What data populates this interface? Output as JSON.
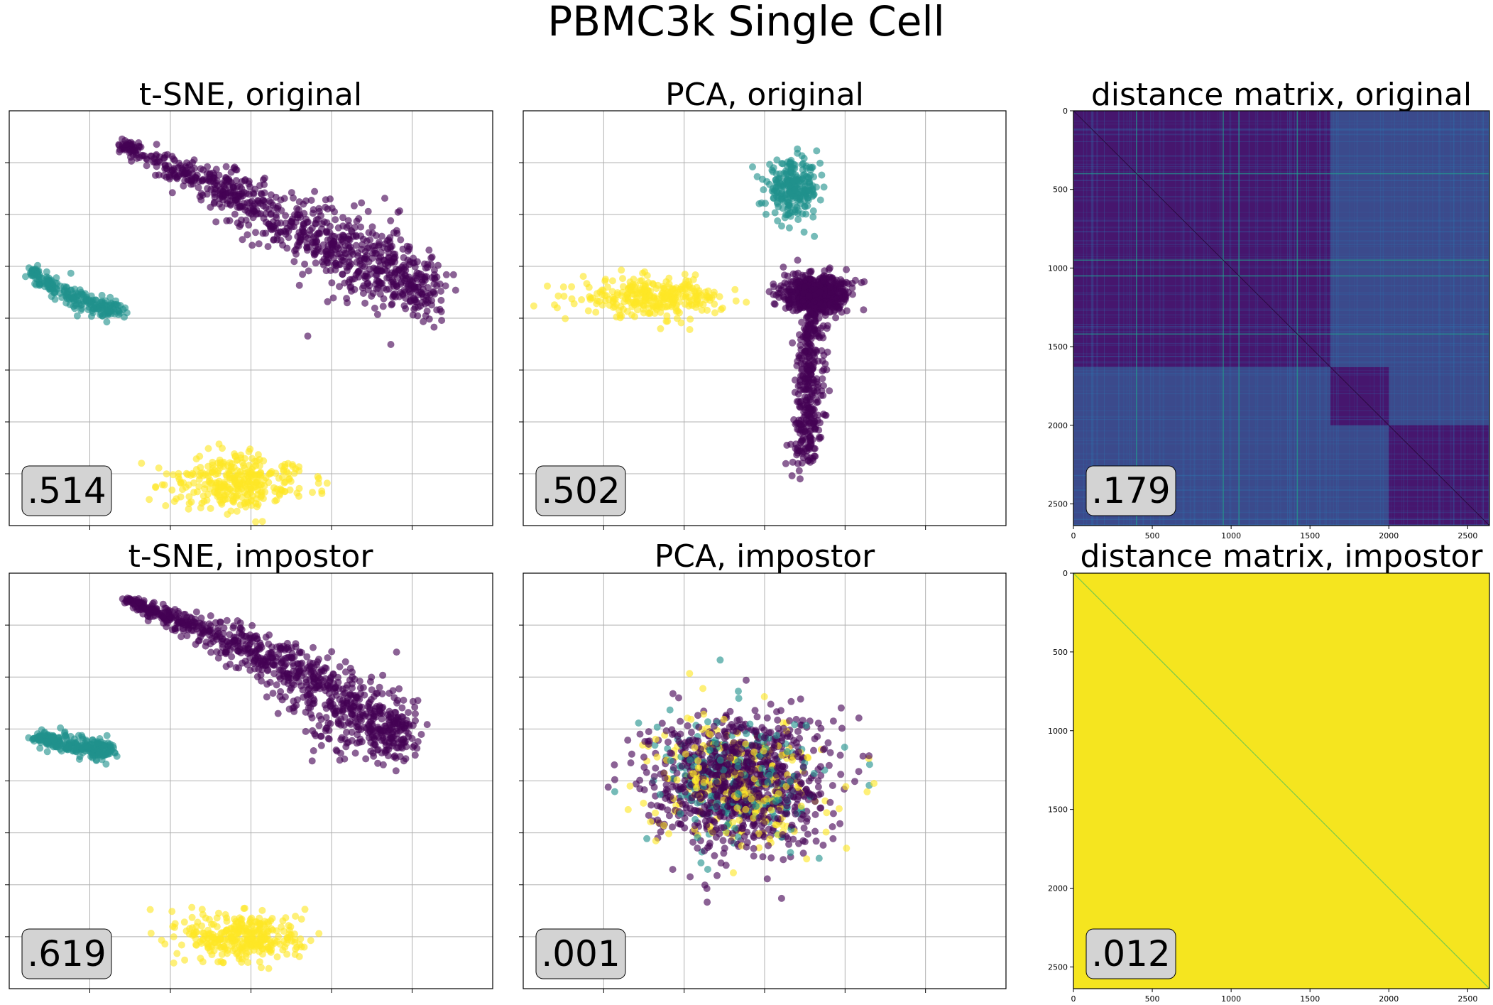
{
  "figure": {
    "title": "PBMC3k Single Cell",
    "colors": {
      "c0": "#440154",
      "c1": "#21918c",
      "c2": "#fde725",
      "dist_base": "#3b4a8c",
      "dist_dark": "#46166e",
      "impostor": "#f5e51f",
      "score_bg": "#d3d3d3"
    }
  },
  "chart_data": [
    {
      "id": "tsne-original",
      "type": "scatter",
      "title": "t-SNE, original",
      "score": ".514",
      "grid": true,
      "tick_labels": "hidden",
      "clusters": [
        {
          "color_key": "c0",
          "n": 900,
          "shape": "spine",
          "spine": [
            [
              -28,
              46
            ],
            [
              -10,
              38
            ],
            [
              5,
              30
            ],
            [
              15,
              24
            ],
            [
              25,
              20
            ],
            [
              32,
              14
            ]
          ],
          "width": [
            2,
            5,
            9,
            12,
            13,
            7
          ]
        },
        {
          "color_key": "c1",
          "n": 230,
          "shape": "spine",
          "spine": [
            [
              -46,
              20
            ],
            [
              -41,
              16
            ],
            [
              -34,
              13
            ],
            [
              -28,
              11
            ]
          ],
          "width": [
            1.5,
            3,
            3,
            2
          ]
        },
        {
          "color_key": "c2",
          "n": 320,
          "shape": "blob",
          "center": [
            -5,
            -24
          ],
          "radius": [
            12,
            5
          ]
        }
      ],
      "xlim": [
        -50,
        45
      ],
      "ylim": [
        -33,
        53
      ]
    },
    {
      "id": "pca-original",
      "type": "scatter",
      "title": "PCA, original",
      "score": ".502",
      "grid": true,
      "tick_labels": "hidden",
      "clusters": [
        {
          "color_key": "c0",
          "n": 600,
          "shape": "blob",
          "center": [
            1.8,
            0.2
          ],
          "radius": [
            1.6,
            0.8
          ]
        },
        {
          "color_key": "c0",
          "n": 350,
          "shape": "spine",
          "spine": [
            [
              1.6,
              -0.2
            ],
            [
              1.4,
              -4
            ],
            [
              1.2,
              -8
            ]
          ],
          "width": [
            0.9,
            1.1,
            1.2
          ]
        },
        {
          "color_key": "c1",
          "n": 250,
          "shape": "blob",
          "center": [
            0.5,
            5.2
          ],
          "radius": [
            1.3,
            1.2
          ]
        },
        {
          "color_key": "c2",
          "n": 300,
          "shape": "blob",
          "center": [
            -7,
            0
          ],
          "radius": [
            3.5,
            0.8
          ]
        }
      ],
      "xlim": [
        -14,
        12
      ],
      "ylim": [
        -11,
        9
      ]
    },
    {
      "id": "dist-original",
      "type": "heatmap",
      "title": "distance matrix, original",
      "score": ".179",
      "blocks": [
        [
          0,
          1630,
          "dark"
        ],
        [
          1630,
          2000,
          "dark"
        ],
        [
          2000,
          2638,
          "dark"
        ]
      ],
      "n": 2638,
      "xticks": [
        "0",
        "500",
        "1000",
        "1500",
        "2000",
        "2500"
      ],
      "yticks": [
        "0",
        "500",
        "1000",
        "1500",
        "2000",
        "2500"
      ]
    },
    {
      "id": "tsne-impostor",
      "type": "scatter",
      "title": "t-SNE, impostor",
      "score": ".619",
      "grid": true,
      "tick_labels": "hidden",
      "clusters": [
        {
          "color_key": "c0",
          "n": 900,
          "shape": "spine",
          "spine": [
            [
              -24,
              46
            ],
            [
              -10,
              40
            ],
            [
              5,
              33
            ],
            [
              15,
              25
            ],
            [
              22,
              20
            ],
            [
              26,
              16
            ]
          ],
          "width": [
            2,
            4,
            7,
            12,
            12,
            6
          ]
        },
        {
          "color_key": "c1",
          "n": 260,
          "shape": "spine",
          "spine": [
            [
              -41,
              17
            ],
            [
              -34,
              15
            ],
            [
              -27,
              14
            ]
          ],
          "width": [
            2,
            3,
            3
          ]
        },
        {
          "color_key": "c2",
          "n": 330,
          "shape": "blob",
          "center": [
            -2,
            -26
          ],
          "radius": [
            10,
            5
          ]
        }
      ],
      "xlim": [
        -46,
        44
      ],
      "ylim": [
        -37,
        52
      ]
    },
    {
      "id": "pca-impostor",
      "type": "scatter",
      "title": "PCA, impostor",
      "score": ".001",
      "grid": true,
      "tick_labels": "hidden",
      "clusters": [
        {
          "color_key": "c0",
          "n": 900,
          "shape": "blob",
          "center": [
            0,
            0
          ],
          "radius": [
            3,
            3
          ]
        },
        {
          "color_key": "c1",
          "n": 220,
          "shape": "blob",
          "center": [
            0,
            0
          ],
          "radius": [
            2.8,
            2.8
          ]
        },
        {
          "color_key": "c2",
          "n": 260,
          "shape": "blob",
          "center": [
            0,
            0
          ],
          "radius": [
            2.8,
            2.8
          ]
        }
      ],
      "xlim": [
        -8,
        10
      ],
      "ylim": [
        -10,
        10
      ]
    },
    {
      "id": "dist-impostor",
      "type": "heatmap",
      "title": "distance matrix, impostor",
      "score": ".012",
      "n": 2638,
      "xticks": [
        "0",
        "500",
        "1000",
        "1500",
        "2000",
        "2500"
      ],
      "yticks": [
        "0",
        "500",
        "1000",
        "1500",
        "2000",
        "2500"
      ]
    }
  ]
}
